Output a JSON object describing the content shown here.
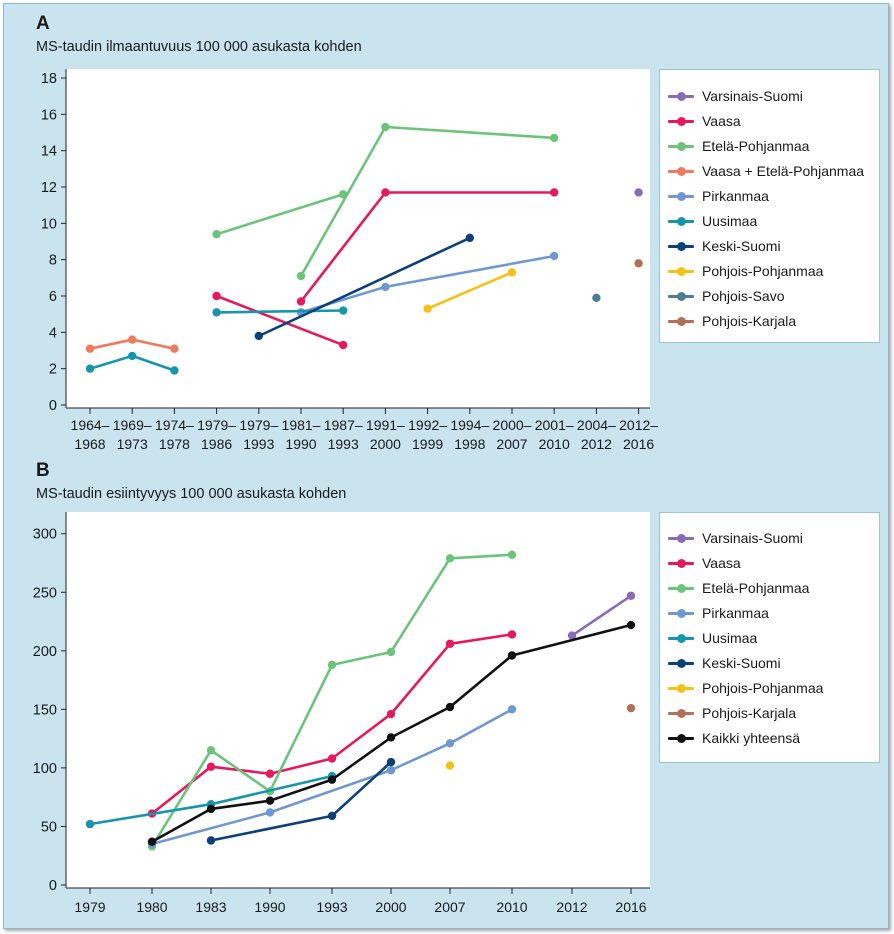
{
  "figure": {
    "panel_a_letter": "A",
    "panel_b_letter": "B"
  },
  "chart_data": [
    {
      "type": "line",
      "panel": "A",
      "title": "MS-taudin ilmaantuvuus 100 000 asukasta kohden",
      "xlabel": "",
      "ylabel": "",
      "ylim": [
        0,
        18
      ],
      "yticks": [
        0,
        2,
        4,
        6,
        8,
        10,
        12,
        14,
        16,
        18
      ],
      "categories": [
        [
          "1964–",
          "1968"
        ],
        [
          "1969–",
          "1973"
        ],
        [
          "1974–",
          "1978"
        ],
        [
          "1979–",
          "1986"
        ],
        [
          "1979–",
          "1993"
        ],
        [
          "1981–",
          "1990"
        ],
        [
          "1987–",
          "1993"
        ],
        [
          "1991–",
          "2000"
        ],
        [
          "1992–",
          "1999"
        ],
        [
          "1994–",
          "1998"
        ],
        [
          "2000–",
          "2007"
        ],
        [
          "2001–",
          "2010"
        ],
        [
          "2004–",
          "2012"
        ],
        [
          "2012–",
          "2016"
        ]
      ],
      "grid": false,
      "legend_position": "right",
      "series": [
        {
          "name": "Varsinais-Suomi",
          "color": "#8a6bb5",
          "points": [
            [
              13,
              11.7
            ]
          ]
        },
        {
          "name": "Vaasa",
          "color": "#e8185c",
          "points": [
            [
              3,
              6.0
            ],
            [
              6,
              3.3
            ]
          ],
          "segments": [
            [
              [
                5,
                5.7
              ],
              [
                7,
                11.7
              ],
              [
                11,
                11.7
              ]
            ]
          ]
        },
        {
          "name": "Etelä-Pohjanmaa",
          "color": "#6cc47b",
          "points": [
            [
              3,
              9.4
            ],
            [
              6,
              11.6
            ]
          ],
          "segments": [
            [
              [
                5,
                7.1
              ],
              [
                7,
                15.3
              ],
              [
                11,
                14.7
              ]
            ]
          ]
        },
        {
          "name": "Vaasa + Etelä-Pohjanmaa",
          "color": "#ef7a5e",
          "points": [
            [
              0,
              3.1
            ],
            [
              1,
              3.6
            ],
            [
              2,
              3.1
            ]
          ]
        },
        {
          "name": "Pirkanmaa",
          "color": "#6f98d2",
          "points": [
            [
              5,
              5.1
            ],
            [
              7,
              6.5
            ],
            [
              11,
              8.2
            ]
          ]
        },
        {
          "name": "Uusimaa",
          "color": "#1596ad",
          "points": [
            [
              0,
              2.0
            ],
            [
              1,
              2.7
            ],
            [
              2,
              1.9
            ]
          ],
          "segments": [
            [
              [
                3,
                5.1
              ],
              [
                6,
                5.2
              ]
            ]
          ]
        },
        {
          "name": "Keski-Suomi",
          "color": "#0d3f7a",
          "points": [
            [
              4,
              3.8
            ],
            [
              9,
              9.2
            ]
          ]
        },
        {
          "name": "Pohjois-Pohjanmaa",
          "color": "#f5c118",
          "points": [
            [
              8,
              5.3
            ],
            [
              10,
              7.3
            ]
          ]
        },
        {
          "name": "Pohjois-Savo",
          "color": "#4d7d8e",
          "points": [
            [
              12,
              5.9
            ]
          ]
        },
        {
          "name": "Pohjois-Karjala",
          "color": "#b07157",
          "points": [
            [
              13,
              7.8
            ]
          ]
        }
      ]
    },
    {
      "type": "line",
      "panel": "B",
      "title": "MS-taudin esiintyvyys 100 000 asukasta kohden",
      "xlabel": "",
      "ylabel": "",
      "ylim": [
        0,
        310
      ],
      "yticks": [
        0,
        50,
        100,
        150,
        200,
        250,
        300
      ],
      "categories": [
        "1979",
        "1980",
        "1983",
        "1990",
        "1993",
        "2000",
        "2007",
        "2010",
        "2012",
        "2016"
      ],
      "grid": false,
      "legend_position": "right",
      "series": [
        {
          "name": "Varsinais-Suomi",
          "color": "#8a6bb5",
          "points": [
            [
              8,
              213
            ],
            [
              9,
              247
            ]
          ]
        },
        {
          "name": "Vaasa",
          "color": "#e8185c",
          "points": [
            [
              1,
              61
            ],
            [
              2,
              101
            ],
            [
              3,
              95
            ],
            [
              4,
              108
            ],
            [
              5,
              146
            ],
            [
              6,
              206
            ],
            [
              7,
              214
            ]
          ]
        },
        {
          "name": "Etelä-Pohjanmaa",
          "color": "#6cc47b",
          "points": [
            [
              1,
              33
            ],
            [
              2,
              115
            ],
            [
              3,
              80
            ],
            [
              4,
              188
            ],
            [
              5,
              199
            ],
            [
              6,
              279
            ],
            [
              7,
              282
            ]
          ]
        },
        {
          "name": "Pirkanmaa",
          "color": "#6f98d2",
          "points": [
            [
              1,
              35
            ],
            [
              3,
              62
            ],
            [
              5,
              98
            ],
            [
              6,
              121
            ],
            [
              7,
              150
            ]
          ]
        },
        {
          "name": "Uusimaa",
          "color": "#1596ad",
          "points": [
            [
              0,
              52
            ],
            [
              2,
              69
            ],
            [
              4,
              93
            ]
          ]
        },
        {
          "name": "Keski-Suomi",
          "color": "#0d3f7a",
          "points": [
            [
              2,
              38
            ],
            [
              4,
              59
            ],
            [
              5,
              105
            ]
          ]
        },
        {
          "name": "Pohjois-Pohjanmaa",
          "color": "#f5c118",
          "points": [
            [
              6,
              102
            ]
          ]
        },
        {
          "name": "Pohjois-Karjala",
          "color": "#b07157",
          "points": [
            [
              9,
              151
            ]
          ]
        },
        {
          "name": "Kaikki yhteensä",
          "color": "#111111",
          "points": [
            [
              1,
              37
            ],
            [
              2,
              65
            ],
            [
              3,
              72
            ],
            [
              4,
              90
            ],
            [
              5,
              126
            ],
            [
              6,
              152
            ],
            [
              7,
              196
            ],
            [
              9,
              222
            ]
          ]
        }
      ]
    }
  ]
}
